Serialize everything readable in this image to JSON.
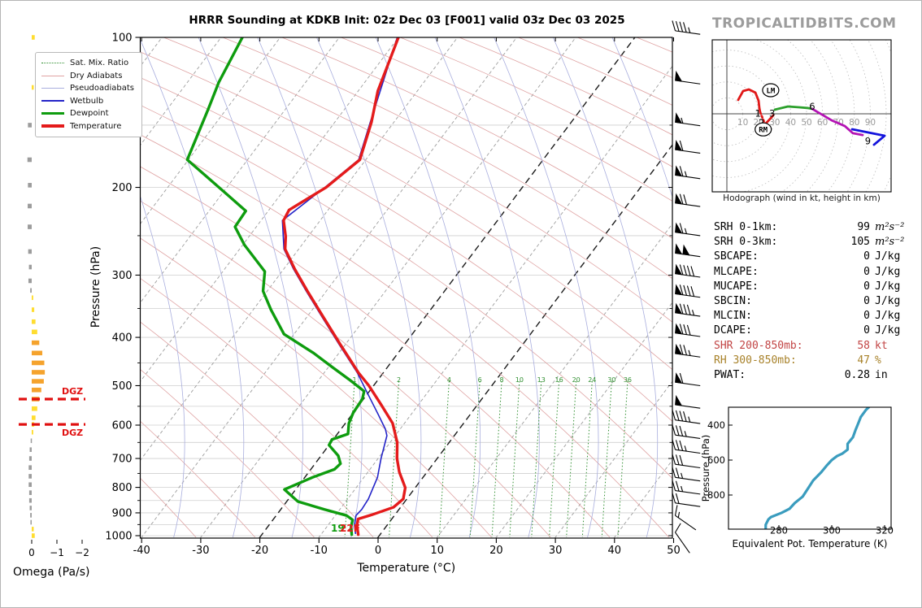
{
  "branding": {
    "logo": "TROPICALTIDBITS.COM",
    "color": "#9c9c9c"
  },
  "chart_data": {
    "type": "skewt-sounding",
    "skewt": {
      "title": "HRRR Sounding at KDKB Init: 02z Dec 03 [F001] valid 03z Dec 03 2025",
      "xlabel": "Temperature (°C)",
      "ylabel": "Pressure (hPa)",
      "x_ticks": [
        -40,
        -30,
        -20,
        -10,
        0,
        10,
        20,
        30,
        40,
        50
      ],
      "p_ticks": [
        100,
        200,
        300,
        400,
        500,
        600,
        700,
        800,
        900,
        1000
      ],
      "xlim": [
        -40.3,
        49.9
      ],
      "plim": [
        100,
        1011
      ],
      "isotherm_highlight": [
        0,
        -20
      ],
      "legend": [
        {
          "label": "Sat. Mix. Ratio",
          "color": "#2f8f2f",
          "style": "dotted",
          "width": 1
        },
        {
          "label": "Dry Adiabats",
          "color": "#dfa3a3",
          "style": "solid",
          "width": 1
        },
        {
          "label": "Pseudoadiabats",
          "color": "#a9aede",
          "style": "solid",
          "width": 1
        },
        {
          "label": "Wetbulb",
          "color": "#2424c8",
          "style": "solid",
          "width": 2
        },
        {
          "label": "Dewpoint",
          "color": "#0e9c0e",
          "style": "solid",
          "width": 3
        },
        {
          "label": "Temperature",
          "color": "#e41b1b",
          "style": "solid",
          "width": 4
        }
      ],
      "mixing_ratios": [
        {
          "v": 1,
          "t500": -24.1
        },
        {
          "v": 2,
          "t500": -16.6
        },
        {
          "v": 4,
          "t500": -8.1
        },
        {
          "v": 6,
          "t500": -2.9
        },
        {
          "v": 8,
          "t500": 0.8
        },
        {
          "v": 10,
          "t500": 3.8
        },
        {
          "v": 13,
          "t500": 7.5
        },
        {
          "v": 16,
          "t500": 10.5
        },
        {
          "v": 20,
          "t500": 13.4
        },
        {
          "v": 24,
          "t500": 16.1
        },
        {
          "v": 30,
          "t500": 19.4
        },
        {
          "v": 36,
          "t500": 22.1
        }
      ],
      "temperature": [
        [
          100,
          -60
        ],
        [
          128,
          -56.7
        ],
        [
          148,
          -53.8
        ],
        [
          176,
          -51.0
        ],
        [
          200,
          -53.2
        ],
        [
          222,
          -56.6
        ],
        [
          233,
          -56.2
        ],
        [
          251,
          -53.8
        ],
        [
          266,
          -52.3
        ],
        [
          292,
          -48.1
        ],
        [
          323,
          -43.2
        ],
        [
          365,
          -37.1
        ],
        [
          413,
          -30.9
        ],
        [
          471,
          -24.2
        ],
        [
          500,
          -20.8
        ],
        [
          546,
          -16.3
        ],
        [
          595,
          -12.0
        ],
        [
          650,
          -8.8
        ],
        [
          700,
          -6.8
        ],
        [
          745,
          -4.7
        ],
        [
          801,
          -1.7
        ],
        [
          844,
          -0.6
        ],
        [
          877,
          -1.2
        ],
        [
          908,
          -3.9
        ],
        [
          926,
          -5.7
        ],
        [
          953,
          -5.1
        ],
        [
          995,
          -3.7
        ]
      ],
      "dewpoint": [
        [
          100,
          -86.4
        ],
        [
          123,
          -84.7
        ],
        [
          139,
          -83.1
        ],
        [
          157,
          -81.6
        ],
        [
          176,
          -80.2
        ],
        [
          208,
          -68.6
        ],
        [
          223,
          -63.8
        ],
        [
          240,
          -63.6
        ],
        [
          261,
          -59.7
        ],
        [
          295,
          -52.9
        ],
        [
          323,
          -50.7
        ],
        [
          352,
          -47.0
        ],
        [
          365,
          -45.3
        ],
        [
          394,
          -41.7
        ],
        [
          430,
          -34.3
        ],
        [
          458,
          -29.5
        ],
        [
          488,
          -24.6
        ],
        [
          513,
          -20.9
        ],
        [
          532,
          -20.2
        ],
        [
          567,
          -20.0
        ],
        [
          595,
          -19.4
        ],
        [
          625,
          -18.2
        ],
        [
          641,
          -20.2
        ],
        [
          658,
          -20.0
        ],
        [
          691,
          -17.1
        ],
        [
          717,
          -15.7
        ],
        [
          736,
          -16.0
        ],
        [
          764,
          -18.7
        ],
        [
          808,
          -21.9
        ],
        [
          854,
          -18.1
        ],
        [
          886,
          -12.6
        ],
        [
          911,
          -8.1
        ],
        [
          930,
          -6.5
        ],
        [
          960,
          -5.9
        ],
        [
          995,
          -4.8
        ]
      ],
      "wetbulb": [
        [
          100,
          -60.2
        ],
        [
          148,
          -54.0
        ],
        [
          176,
          -51.2
        ],
        [
          200,
          -53.4
        ],
        [
          233,
          -56.4
        ],
        [
          266,
          -52.5
        ],
        [
          292,
          -48.3
        ],
        [
          323,
          -43.4
        ],
        [
          365,
          -37.3
        ],
        [
          413,
          -31.1
        ],
        [
          471,
          -24.4
        ],
        [
          513,
          -20.5
        ],
        [
          567,
          -15.9
        ],
        [
          611,
          -12.5
        ],
        [
          630,
          -11.4
        ],
        [
          700,
          -9.5
        ],
        [
          764,
          -7.7
        ],
        [
          844,
          -6.5
        ],
        [
          886,
          -6.3
        ],
        [
          911,
          -6.5
        ],
        [
          953,
          -5.5
        ],
        [
          990,
          -4.3
        ]
      ],
      "surface_labels": {
        "dewpoint_f": "19",
        "temperature_f": "22F"
      }
    },
    "omega": {
      "xlabel": "Omega (Pa/s)",
      "x_ticks": [
        0,
        -1,
        -2
      ],
      "dgz_label": "DGZ",
      "dgz_pressures": [
        532,
        598
      ],
      "bars": [
        [
          100,
          -0.12,
          "y"
        ],
        [
          126,
          -0.08,
          "y"
        ],
        [
          150,
          0.15,
          "g"
        ],
        [
          176,
          0.17,
          "g"
        ],
        [
          198,
          0.15,
          "g"
        ],
        [
          218,
          0.16,
          "g"
        ],
        [
          240,
          0.16,
          "g"
        ],
        [
          269,
          0.14,
          "g"
        ],
        [
          289,
          0.11,
          "g"
        ],
        [
          308,
          0.13,
          "g"
        ],
        [
          322,
          0.06,
          "g"
        ],
        [
          333,
          -0.06,
          "y"
        ],
        [
          352,
          -0.1,
          "y"
        ],
        [
          372,
          -0.15,
          "y"
        ],
        [
          390,
          -0.22,
          "y"
        ],
        [
          410,
          -0.3,
          "o"
        ],
        [
          430,
          -0.42,
          "o"
        ],
        [
          450,
          -0.5,
          "o"
        ],
        [
          470,
          -0.52,
          "o"
        ],
        [
          490,
          -0.48,
          "o"
        ],
        [
          510,
          -0.38,
          "o"
        ],
        [
          532,
          -0.3,
          "o"
        ],
        [
          556,
          -0.22,
          "y"
        ],
        [
          580,
          -0.15,
          "y"
        ],
        [
          598,
          -0.1,
          "y"
        ],
        [
          620,
          -0.06,
          "y"
        ],
        [
          645,
          0.04,
          "g"
        ],
        [
          672,
          0.08,
          "g"
        ],
        [
          700,
          0.1,
          "g"
        ],
        [
          730,
          0.12,
          "g"
        ],
        [
          760,
          0.12,
          "g"
        ],
        [
          790,
          0.12,
          "g"
        ],
        [
          820,
          0.1,
          "g"
        ],
        [
          850,
          0.1,
          "g"
        ],
        [
          880,
          0.08,
          "g"
        ],
        [
          910,
          0.06,
          "g"
        ],
        [
          940,
          0.05,
          "g"
        ],
        [
          970,
          -0.08,
          "y"
        ],
        [
          1000,
          -0.12,
          "y"
        ]
      ],
      "colors": {
        "o": "#f5a32d",
        "y": "#ffdd30",
        "g": "#9c9c9c",
        "dgz": "#e01010"
      }
    },
    "wind_barbs": [
      [
        97,
        45,
        8
      ],
      [
        122,
        50,
        8
      ],
      [
        148,
        55,
        8
      ],
      [
        168,
        60,
        8
      ],
      [
        189,
        65,
        8
      ],
      [
        215,
        70,
        8
      ],
      [
        246,
        65,
        8
      ],
      [
        271,
        100,
        8
      ],
      [
        298,
        90,
        8
      ],
      [
        327,
        90,
        8
      ],
      [
        357,
        85,
        8
      ],
      [
        392,
        80,
        8
      ],
      [
        431,
        75,
        8
      ],
      [
        492,
        60,
        8
      ],
      [
        546,
        50,
        8
      ],
      [
        586,
        45,
        8
      ],
      [
        628,
        35,
        8
      ],
      [
        672,
        35,
        8
      ],
      [
        719,
        30,
        8
      ],
      [
        764,
        25,
        8
      ],
      [
        812,
        25,
        8
      ],
      [
        860,
        20,
        8
      ],
      [
        911,
        15,
        35
      ],
      [
        985,
        10,
        55
      ]
    ],
    "hodograph": {
      "caption": "Hodograph (wind in kt, height in km)",
      "ring_interval_kt": 10,
      "ring_labels": [
        10,
        20,
        30,
        40,
        50,
        60,
        70,
        80,
        90
      ],
      "segments": [
        {
          "name": "0-1km",
          "color": "#e01818",
          "style": "solid",
          "pts": [
            [
              7.1,
              8.7
            ],
            [
              10.2,
              14.3
            ],
            [
              13.8,
              15.3
            ],
            [
              17.9,
              13.3
            ],
            [
              19.9,
              8.2
            ],
            [
              20.4,
              3.6
            ],
            [
              20.9,
              1.0
            ]
          ]
        },
        {
          "name": "1-2km",
          "color": "#e01818",
          "style": "dotted",
          "pts": [
            [
              20.9,
              1.0
            ],
            [
              24.0,
              -6.6
            ]
          ]
        },
        {
          "name": "2-3km",
          "color": "#e01818",
          "style": "solid",
          "pts": [
            [
              24.0,
              -6.6
            ],
            [
              29.1,
              -1.0
            ]
          ]
        },
        {
          "name": "3-6km",
          "color": "#2ca02c",
          "style": "solid",
          "pts": [
            [
              30.1,
              2.6
            ],
            [
              38.3,
              4.6
            ],
            [
              45.4,
              4.1
            ],
            [
              51.0,
              3.6
            ],
            [
              53.6,
              3.1
            ]
          ]
        },
        {
          "name": "6-9km",
          "color": "#b414b4",
          "style": "solid",
          "pts": [
            [
              53.6,
              3.1
            ],
            [
              57.1,
              1.0
            ],
            [
              65.8,
              -4.1
            ],
            [
              74.0,
              -7.7
            ],
            [
              79.1,
              -12.2
            ],
            [
              85.2,
              -13.3
            ]
          ]
        },
        {
          "name": "9km+",
          "color": "#1414dc",
          "style": "solid",
          "pts": [
            [
              78.6,
              -9.7
            ],
            [
              99.0,
              -13.8
            ],
            [
              92.3,
              -19.4
            ]
          ]
        }
      ],
      "height_labels": [
        {
          "t": "1",
          "u": 19.5,
          "v": 0.3
        },
        {
          "t": "2",
          "u": 21.7,
          "v": -5.5
        },
        {
          "t": "3",
          "u": 28.4,
          "v": 0.3
        },
        {
          "t": "6",
          "u": 53.5,
          "v": 4.5
        },
        {
          "t": "9",
          "u": 88.5,
          "v": -17.0
        }
      ],
      "storm_motions": [
        {
          "t": "LM",
          "u": 27.5,
          "v": 14.8
        },
        {
          "t": "RM",
          "u": 22.8,
          "v": -9.8
        }
      ]
    },
    "theta_e": {
      "xlabel": "Equivalent Pot. Temperature (K)",
      "ylabel": "Pressure (hPa)",
      "x_ticks": [
        280,
        300,
        320
      ],
      "p_ticks": [
        400,
        600,
        800
      ],
      "color": "#3a9cbe",
      "points": [
        [
          275,
          995
        ],
        [
          275,
          970
        ],
        [
          276,
          940
        ],
        [
          277,
          926
        ],
        [
          281,
          902
        ],
        [
          284,
          879
        ],
        [
          286,
          846
        ],
        [
          289,
          809
        ],
        [
          291,
          763
        ],
        [
          293,
          716
        ],
        [
          296,
          670
        ],
        [
          298,
          633
        ],
        [
          300,
          600
        ],
        [
          302,
          577
        ],
        [
          304,
          563
        ],
        [
          306,
          540
        ],
        [
          306,
          507
        ],
        [
          308,
          470
        ],
        [
          309,
          428
        ],
        [
          310,
          391
        ],
        [
          311,
          353
        ],
        [
          313,
          312
        ],
        [
          314,
          298
        ]
      ]
    }
  },
  "stats": {
    "rows": [
      {
        "label": "SRH 0-1km:",
        "value": "99",
        "unit": "m²s⁻²",
        "color": "#000000",
        "sup": true
      },
      {
        "label": "SRH 0-3km:",
        "value": "105",
        "unit": "m²s⁻²",
        "color": "#000000",
        "sup": true
      },
      {
        "label": "SBCAPE:",
        "value": "0",
        "unit": "J/kg",
        "color": "#000000",
        "sup": false
      },
      {
        "label": "MLCAPE:",
        "value": "0",
        "unit": "J/kg",
        "color": "#000000",
        "sup": false
      },
      {
        "label": "MUCAPE:",
        "value": "0",
        "unit": "J/kg",
        "color": "#000000",
        "sup": false
      },
      {
        "label": "SBCIN:",
        "value": "0",
        "unit": "J/kg",
        "color": "#000000",
        "sup": false
      },
      {
        "label": "MLCIN:",
        "value": "0",
        "unit": "J/kg",
        "color": "#000000",
        "sup": false
      },
      {
        "label": "DCAPE:",
        "value": "0",
        "unit": "J/kg",
        "color": "#000000",
        "sup": false
      },
      {
        "label": "SHR 200-850mb:",
        "value": "58",
        "unit": "kt",
        "color": "#c24444",
        "sup": false
      },
      {
        "label": "RH 300-850mb:",
        "value": "47",
        "unit": "%",
        "color": "#a8822a",
        "sup": false
      },
      {
        "label": "PWAT:",
        "value": "0.28",
        "unit": "in",
        "color": "#000000",
        "sup": false
      }
    ]
  }
}
